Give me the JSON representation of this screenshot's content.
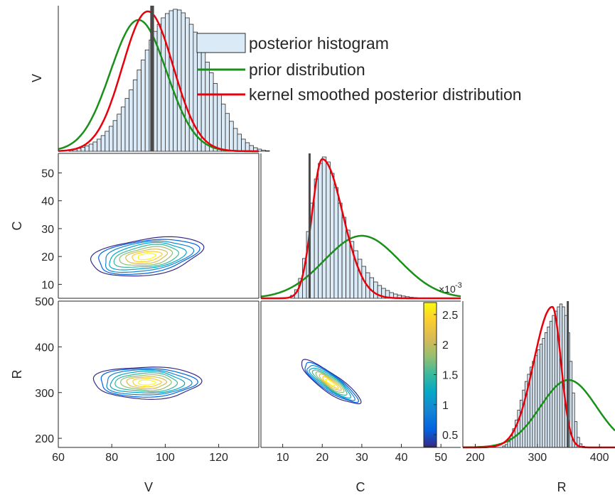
{
  "chart_data": [
    {
      "id": "V_marginal",
      "type": "histogram",
      "ylabel": "V",
      "xlim": [
        60,
        135
      ],
      "bins": {
        "start": 64,
        "width": 1.5,
        "counts": [
          1,
          1.4,
          2,
          2.8,
          3.8,
          5,
          6.5,
          8.5,
          11,
          14,
          17.5,
          21.5,
          26,
          31,
          37,
          43,
          50,
          57,
          64,
          71,
          78,
          84,
          89,
          93.5,
          96.5,
          98.5,
          99.5,
          99,
          97,
          93.5,
          89,
          83.5,
          77,
          70,
          62.5,
          55,
          47.5,
          40,
          33,
          26.5,
          21,
          16,
          12,
          8.5,
          6,
          4,
          2.5,
          1.5,
          0.8,
          0.4
        ]
      },
      "truth_lines": [
        94.8,
        95.4
      ],
      "prior": {
        "dist": "normal",
        "mean": 90,
        "sd": 10.5
      },
      "kernel_smoothed": {
        "dist": "normal",
        "mean": 93.5,
        "sd": 9.5
      }
    },
    {
      "id": "C_marginal",
      "type": "histogram",
      "xlim": [
        4.5,
        55
      ],
      "bins": {
        "start": 12,
        "width": 1,
        "counts": [
          2,
          6,
          14,
          28,
          47,
          67,
          84,
          95,
          99.5,
          96,
          88,
          78,
          67,
          57,
          48,
          40,
          33.5,
          27.5,
          22.5,
          18,
          14.5,
          11.5,
          9,
          7,
          5.5,
          4,
          3,
          2.2,
          1.6,
          1.1,
          0.7,
          0.5,
          0.3,
          0.2
        ]
      },
      "truth_lines": [
        16.8
      ],
      "prior": {
        "dist": "normal",
        "mean": 30,
        "sd": 9.5,
        "peak_fraction": 0.44
      },
      "kernel_smoothed": {
        "dist": "skewed",
        "mode": 20,
        "left_sd": 2.6,
        "right_sd": 5.2
      }
    },
    {
      "id": "R_marginal",
      "type": "histogram",
      "xlabel": "R",
      "xlim": [
        180,
        425
      ],
      "xticks": [
        200,
        300,
        400
      ],
      "bins": {
        "start": 244,
        "width": 4,
        "counts": [
          1,
          2,
          4,
          8,
          13,
          19,
          26,
          33,
          40,
          46,
          51,
          56,
          60,
          64,
          68,
          72,
          76,
          80,
          84,
          88,
          92,
          95,
          98,
          100,
          98,
          92,
          80,
          60,
          38,
          18,
          7,
          2.5,
          0.8
        ]
      },
      "truth_lines": [
        349
      ],
      "prior": {
        "dist": "normal",
        "mean": 350,
        "sd": 45,
        "peak_fraction": 0.47
      },
      "kernel_smoothed": {
        "dist": "skewed",
        "mode": 324,
        "left_sd": 30,
        "right_sd": 14
      }
    },
    {
      "id": "C_vs_V",
      "type": "contour",
      "xlim": [
        60,
        135
      ],
      "ylim": [
        5,
        57
      ],
      "ylabel": "C",
      "yticks": [
        10,
        20,
        30,
        40,
        50
      ],
      "center": [
        93,
        20
      ],
      "radii": [
        21,
        6.5
      ],
      "tilt": -8
    },
    {
      "id": "R_vs_V",
      "type": "contour",
      "xlim": [
        60,
        135
      ],
      "ylim": [
        180,
        500
      ],
      "xlabel": "V",
      "ylabel": "R",
      "xticks": [
        60,
        80,
        100,
        120
      ],
      "yticks": [
        200,
        300,
        400,
        500
      ],
      "center": [
        93,
        322
      ],
      "radii": [
        20,
        35
      ],
      "tilt": 0
    },
    {
      "id": "R_vs_C",
      "type": "contour",
      "xlim": [
        4.5,
        55
      ],
      "ylim": [
        180,
        500
      ],
      "xlabel": "C",
      "xticks": [
        10,
        20,
        30,
        40,
        50
      ],
      "center": [
        22,
        322
      ],
      "radii": [
        9,
        20
      ],
      "tilt": 35
    }
  ],
  "colorbar": {
    "min": 0.3,
    "max": 2.7,
    "ticks": [
      "0.5",
      "1",
      "1.5",
      "2",
      "2.5"
    ],
    "tick_values": [
      0.5,
      1,
      1.5,
      2,
      2.5
    ],
    "exponent": "×10",
    "exponent_power": "-3"
  },
  "legend": {
    "placement": "top-right",
    "items": [
      "posterior histogram",
      "prior distribution",
      "kernel smoothed posterior distribution"
    ]
  },
  "colors": {
    "hist_fill": "#dbeaf7",
    "hist_edge": "#2a2a2a",
    "prior": "#1a8f1a",
    "posterior": "#e8000b",
    "truth": "#4a4a4a",
    "axis": "#262626"
  }
}
